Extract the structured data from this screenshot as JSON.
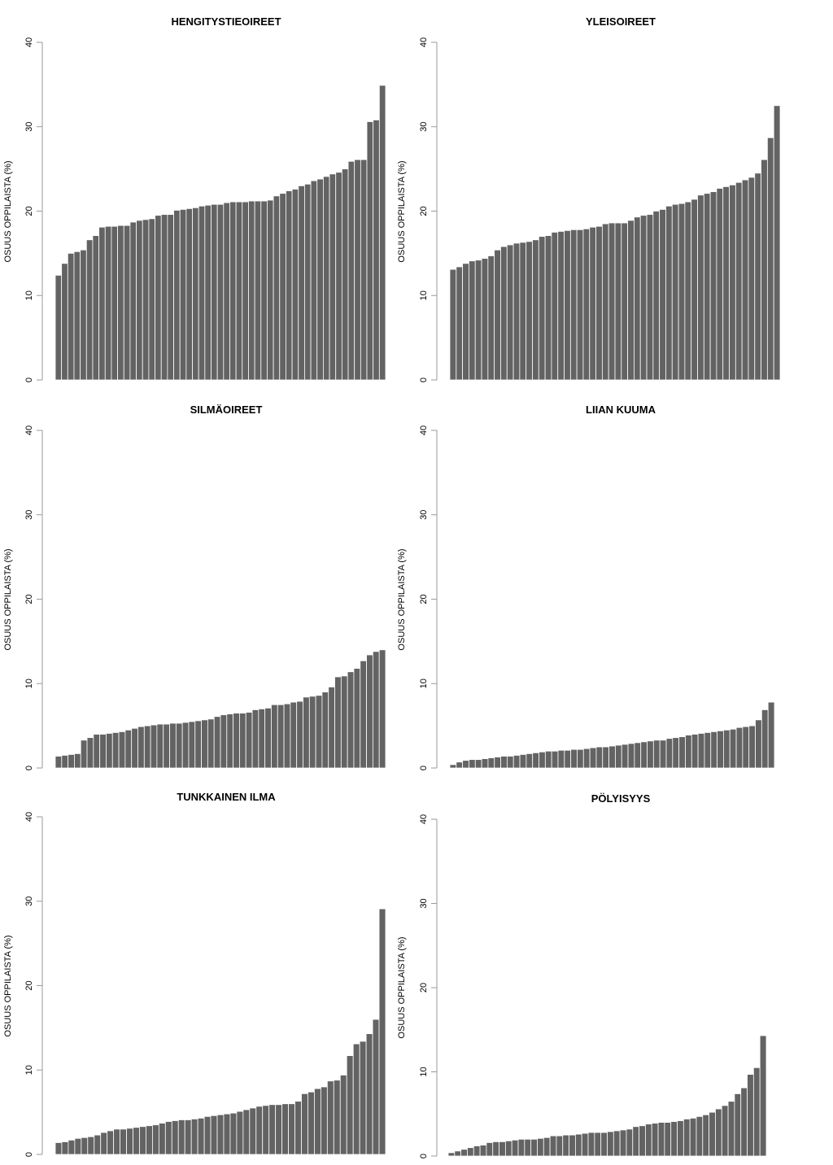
{
  "chart_data": [
    {
      "type": "bar",
      "title": "HENGITYSTIEOIREET",
      "xlabel": "",
      "ylabel": "OSUUS OPPILAISTA (%)",
      "ylim": [
        0,
        40
      ],
      "yticks": [
        0,
        10,
        20,
        30,
        40
      ],
      "grid": false,
      "colors": {
        "bar": "#636363"
      },
      "values": [
        12.4,
        13.8,
        15.0,
        15.2,
        15.4,
        16.6,
        17.1,
        18.1,
        18.2,
        18.2,
        18.3,
        18.3,
        18.7,
        18.9,
        19.0,
        19.1,
        19.5,
        19.6,
        19.6,
        20.1,
        20.2,
        20.3,
        20.4,
        20.6,
        20.7,
        20.8,
        20.8,
        21.0,
        21.1,
        21.1,
        21.1,
        21.2,
        21.2,
        21.2,
        21.3,
        21.8,
        22.1,
        22.4,
        22.6,
        23.0,
        23.2,
        23.6,
        23.8,
        24.1,
        24.4,
        24.6,
        25.0,
        25.9,
        26.1,
        26.1,
        30.6,
        30.8,
        34.9
      ]
    },
    {
      "type": "bar",
      "title": "YLEISOIREET",
      "xlabel": "",
      "ylabel": "OSUUS OPPILAISTA (%)",
      "ylim": [
        0,
        40
      ],
      "yticks": [
        0,
        10,
        20,
        30,
        40
      ],
      "grid": false,
      "colors": {
        "bar": "#636363"
      },
      "values": [
        13.1,
        13.4,
        13.8,
        14.1,
        14.2,
        14.4,
        14.7,
        15.4,
        15.8,
        16.0,
        16.2,
        16.3,
        16.4,
        16.6,
        17.0,
        17.1,
        17.5,
        17.6,
        17.7,
        17.8,
        17.8,
        17.9,
        18.1,
        18.2,
        18.5,
        18.6,
        18.6,
        18.6,
        18.9,
        19.3,
        19.5,
        19.6,
        20.0,
        20.2,
        20.6,
        20.8,
        20.9,
        21.1,
        21.4,
        21.9,
        22.1,
        22.3,
        22.7,
        22.9,
        23.1,
        23.4,
        23.7,
        24.0,
        24.5,
        26.1,
        28.7,
        32.5
      ]
    },
    {
      "type": "bar",
      "title": "SILMÄOIREET",
      "xlabel": "",
      "ylabel": "OSUUS OPPILAISTA (%)",
      "ylim": [
        0,
        40
      ],
      "yticks": [
        0,
        10,
        20,
        30,
        40
      ],
      "grid": false,
      "colors": {
        "bar": "#636363"
      },
      "values": [
        1.4,
        1.5,
        1.6,
        1.7,
        3.3,
        3.6,
        4.0,
        4.0,
        4.1,
        4.2,
        4.3,
        4.5,
        4.7,
        4.9,
        5.0,
        5.1,
        5.2,
        5.2,
        5.3,
        5.3,
        5.4,
        5.5,
        5.6,
        5.7,
        5.8,
        6.1,
        6.3,
        6.4,
        6.5,
        6.5,
        6.6,
        6.9,
        7.0,
        7.1,
        7.5,
        7.5,
        7.6,
        7.8,
        7.9,
        8.4,
        8.5,
        8.6,
        9.0,
        9.6,
        10.8,
        10.9,
        11.4,
        11.8,
        12.7,
        13.4,
        13.8,
        14.0
      ]
    },
    {
      "type": "bar",
      "title": "LIIAN KUUMA",
      "xlabel": "",
      "ylabel": "OSUUS OPPILAISTA (%)",
      "ylim": [
        0,
        40
      ],
      "yticks": [
        0,
        10,
        20,
        30,
        40
      ],
      "grid": false,
      "colors": {
        "bar": "#636363"
      },
      "values": [
        0.4,
        0.7,
        0.9,
        1.0,
        1.0,
        1.1,
        1.2,
        1.3,
        1.4,
        1.4,
        1.5,
        1.6,
        1.7,
        1.8,
        1.9,
        2.0,
        2.0,
        2.1,
        2.1,
        2.2,
        2.2,
        2.3,
        2.4,
        2.5,
        2.5,
        2.6,
        2.7,
        2.8,
        2.9,
        3.0,
        3.1,
        3.2,
        3.3,
        3.3,
        3.5,
        3.6,
        3.7,
        3.9,
        4.0,
        4.1,
        4.2,
        4.3,
        4.4,
        4.5,
        4.6,
        4.8,
        4.9,
        5.0,
        5.7,
        6.9,
        7.8
      ]
    },
    {
      "type": "bar",
      "title": "TUNKKAINEN ILMA",
      "xlabel": "",
      "ylabel": "OSUUS OPPILAISTA (%)",
      "ylim": [
        0,
        40
      ],
      "yticks": [
        0,
        10,
        20,
        30,
        40
      ],
      "grid": false,
      "colors": {
        "bar": "#636363"
      },
      "values": [
        1.4,
        1.5,
        1.7,
        1.9,
        2.0,
        2.1,
        2.3,
        2.6,
        2.8,
        3.0,
        3.0,
        3.1,
        3.2,
        3.3,
        3.4,
        3.5,
        3.7,
        3.9,
        4.0,
        4.1,
        4.1,
        4.2,
        4.3,
        4.5,
        4.6,
        4.7,
        4.8,
        4.9,
        5.1,
        5.3,
        5.5,
        5.7,
        5.8,
        5.9,
        5.9,
        6.0,
        6.0,
        6.3,
        7.2,
        7.4,
        7.8,
        8.0,
        8.7,
        8.8,
        9.4,
        11.7,
        13.1,
        13.4,
        14.3,
        16.0,
        29.1
      ]
    },
    {
      "type": "bar",
      "title": "PÖLYISYYS",
      "xlabel": "",
      "ylabel": "OSUUS OPPILAISTA (%)",
      "ylim": [
        0,
        40
      ],
      "yticks": [
        0,
        10,
        20,
        30,
        40
      ],
      "grid": false,
      "colors": {
        "bar": "#636363"
      },
      "values": [
        0.4,
        0.6,
        0.8,
        1.0,
        1.2,
        1.3,
        1.6,
        1.7,
        1.7,
        1.8,
        1.9,
        2.0,
        2.0,
        2.0,
        2.1,
        2.2,
        2.4,
        2.4,
        2.5,
        2.5,
        2.6,
        2.7,
        2.8,
        2.8,
        2.8,
        2.9,
        3.0,
        3.1,
        3.2,
        3.5,
        3.6,
        3.8,
        3.9,
        4.0,
        4.0,
        4.1,
        4.2,
        4.4,
        4.5,
        4.7,
        4.9,
        5.2,
        5.6,
        6.0,
        6.5,
        7.4,
        8.1,
        9.7,
        10.5,
        14.3
      ]
    }
  ]
}
